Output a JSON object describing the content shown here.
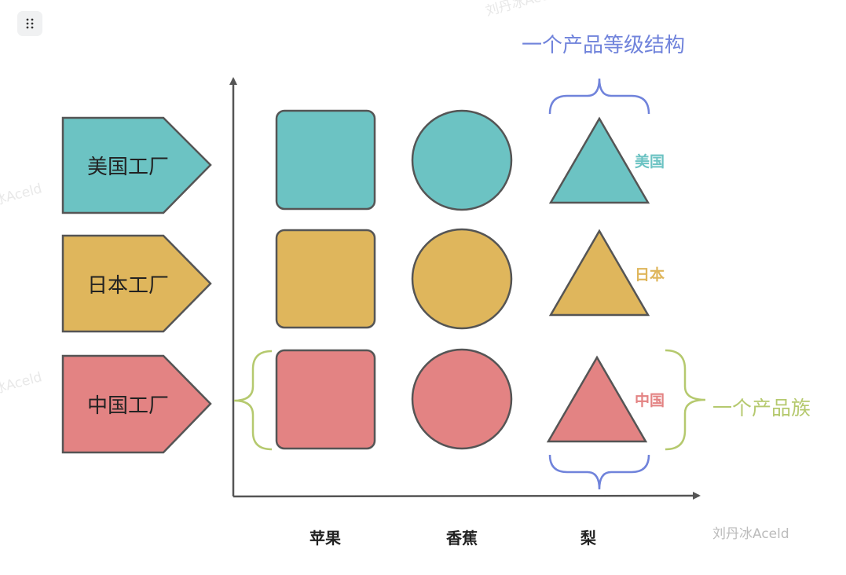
{
  "toolbar": {
    "drag_handle_icon": "drag-handle-dots-icon"
  },
  "watermarks": [
    "刘丹冰Aceld",
    "刘丹冰Aceld",
    "刘丹冰Aceld"
  ],
  "colors": {
    "usa": "#6cc3c3",
    "japan": "#dfb65c",
    "china": "#e38383",
    "level": "#7083db",
    "family": "#b5c96e",
    "stroke": "#555555"
  },
  "factories": [
    {
      "label": "美国工厂",
      "color": "#6cc3c3"
    },
    {
      "label": "日本工厂",
      "color": "#dfb65c"
    },
    {
      "label": "中国工厂",
      "color": "#e38383"
    }
  ],
  "row_tags": [
    {
      "label": "美国",
      "color": "#6cc3c3"
    },
    {
      "label": "日本",
      "color": "#dfb65c"
    },
    {
      "label": "中国",
      "color": "#e38383"
    }
  ],
  "products": [
    "苹果",
    "香蕉",
    "梨"
  ],
  "annotations": {
    "level": "一个产品等级结构",
    "family": "一个产品族"
  },
  "signature": "刘丹冰Aceld"
}
